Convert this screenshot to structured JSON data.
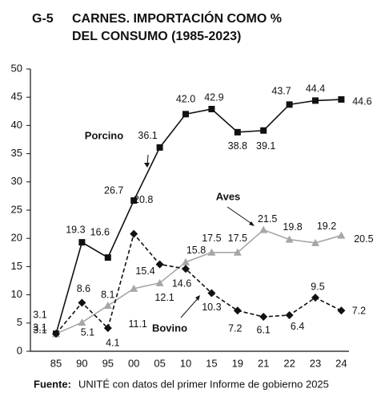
{
  "chart_data": {
    "type": "line",
    "label": "G-5",
    "title": [
      "CARNES. IMPORTACIÓN COMO %",
      "DEL CONSUMO (1985-2023)"
    ],
    "source_label": "Fuente:",
    "source": "UNITÉ con datos del primer Informe de gobierno 2025",
    "categories": [
      "85",
      "90",
      "95",
      "00",
      "05",
      "10",
      "15",
      "19",
      "21",
      "22",
      "23",
      "24"
    ],
    "ylim": [
      0,
      50
    ],
    "yticks": [
      0,
      5,
      10,
      15,
      20,
      25,
      30,
      35,
      40,
      45,
      50
    ],
    "grid": false,
    "series": [
      {
        "name": "Porcino",
        "color": "#111111",
        "dash": false,
        "marker": "square",
        "values": [
          3.1,
          19.3,
          16.6,
          26.7,
          36.1,
          42.0,
          42.9,
          38.8,
          39.1,
          43.7,
          44.4,
          44.6
        ],
        "value_labels": [
          "3.1",
          "19.3",
          "16.6",
          "26.7",
          "36.1",
          "42.0",
          "42.9",
          "38.8",
          "39.1",
          "43.7",
          "44.4",
          "44.6"
        ]
      },
      {
        "name": "Aves",
        "color": "#a6a6a6",
        "dash": false,
        "marker": "triangle",
        "values": [
          3.1,
          5.1,
          8.1,
          11.1,
          12.1,
          15.8,
          17.5,
          17.5,
          21.5,
          19.8,
          19.2,
          20.5
        ],
        "value_labels": [
          "3.1",
          "5.1",
          "8.1",
          "11.1",
          "12.1",
          "15.8",
          "17.5",
          "17.5",
          "21.5",
          "19.8",
          "19.2",
          "20.5"
        ]
      },
      {
        "name": "Bovino",
        "color": "#111111",
        "dash": true,
        "marker": "diamond",
        "values": [
          3.1,
          8.6,
          4.1,
          20.8,
          15.4,
          14.6,
          10.3,
          7.2,
          6.1,
          6.4,
          9.5,
          7.2
        ],
        "value_labels": [
          "3.1",
          "8.6",
          "4.1",
          "20.8",
          "15.4",
          "14.6",
          "10.3",
          "7.2",
          "6.1",
          "6.4",
          "9.5",
          "7.2"
        ]
      }
    ]
  }
}
